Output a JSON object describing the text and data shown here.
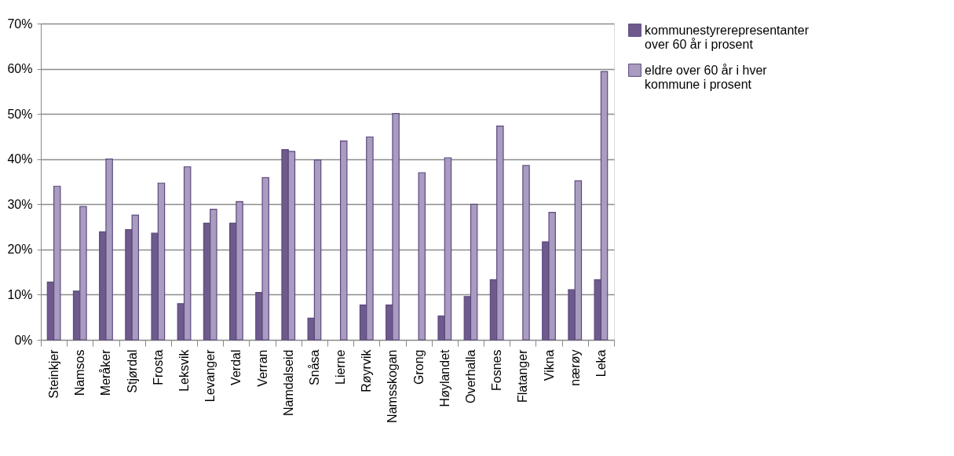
{
  "chart_data": {
    "type": "bar",
    "categories": [
      "Steinkjer",
      "Namsos",
      "Meråker",
      "Stjørdal",
      "Frosta",
      "Leksvik",
      "Levanger",
      "Verdal",
      "Verran",
      "Namdalseid",
      "Snåsa",
      "Lierne",
      "Røyrvik",
      "Namsskogan",
      "Grong",
      "Høylandet",
      "Overhalla",
      "Fosnes",
      "Flatanger",
      "Vikna",
      "nærøy",
      "Leka"
    ],
    "series": [
      {
        "name": "kommunestyrerepresentanter over 60 år i prosent",
        "color": "#6f5a8e",
        "values": [
          12.8,
          10.8,
          23.9,
          24.4,
          23.6,
          8.0,
          25.8,
          25.8,
          10.5,
          42.1,
          4.8,
          null,
          7.7,
          7.7,
          null,
          5.3,
          9.6,
          13.3,
          null,
          21.7,
          11.1,
          13.3
        ]
      },
      {
        "name": "eldre over 60 år i hver kommune i prosent",
        "color": "#a99cc0",
        "values": [
          34.0,
          29.5,
          40.0,
          27.6,
          34.7,
          38.3,
          28.9,
          30.6,
          35.9,
          41.7,
          39.8,
          44.0,
          44.9,
          50.1,
          37.0,
          40.3,
          30.0,
          47.3,
          38.6,
          28.2,
          35.2,
          59.4
        ]
      }
    ],
    "ylim": [
      0,
      70
    ],
    "yticks": [
      {
        "value": 0,
        "label": "0%"
      },
      {
        "value": 10,
        "label": "10%"
      },
      {
        "value": 20,
        "label": "20%"
      },
      {
        "value": 30,
        "label": "30%"
      },
      {
        "value": 40,
        "label": "40%"
      },
      {
        "value": 50,
        "label": "50%"
      },
      {
        "value": 60,
        "label": "60%"
      },
      {
        "value": 70,
        "label": "70%"
      }
    ],
    "grid": "y",
    "legend": "right"
  }
}
